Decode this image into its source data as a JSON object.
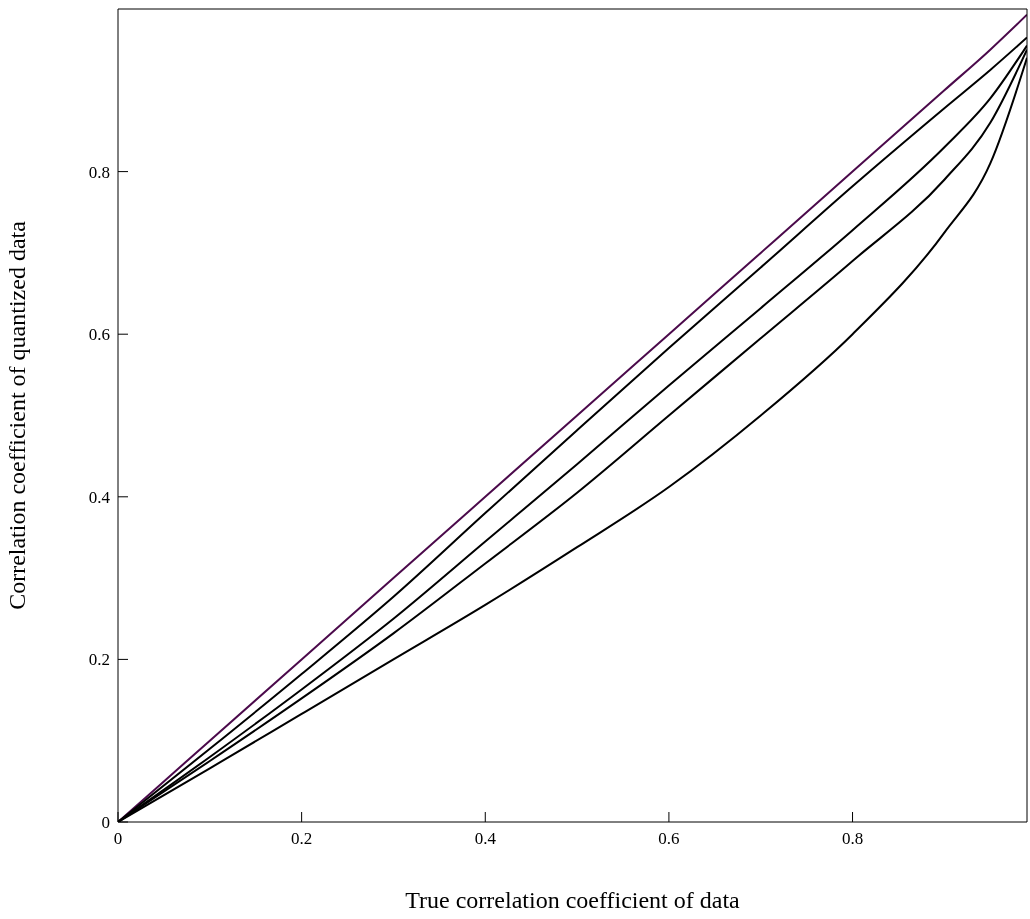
{
  "chart_data": {
    "type": "line",
    "xlabel": "True correlation coefficient of data",
    "ylabel": "Correlation coefficient of quantized data",
    "x": [
      0,
      0.1,
      0.2,
      0.3,
      0.4,
      0.5,
      0.6,
      0.7,
      0.8,
      0.9,
      0.95,
      0.99
    ],
    "series": [
      {
        "color": "#4b0a4b",
        "values": [
          0,
          0.1,
          0.2,
          0.3,
          0.4,
          0.5,
          0.6,
          0.7,
          0.8,
          0.9,
          0.95,
          0.993
        ]
      },
      {
        "color": "#000000",
        "values": [
          0,
          0.09,
          0.182,
          0.277,
          0.38,
          0.482,
          0.583,
          0.682,
          0.782,
          0.878,
          0.925,
          0.965
        ]
      },
      {
        "color": "#000000",
        "values": [
          0,
          0.08,
          0.163,
          0.25,
          0.345,
          0.44,
          0.537,
          0.632,
          0.728,
          0.83,
          0.89,
          0.955
        ]
      },
      {
        "color": "#000000",
        "values": [
          0,
          0.075,
          0.152,
          0.232,
          0.318,
          0.405,
          0.5,
          0.595,
          0.69,
          0.79,
          0.86,
          0.95
        ]
      },
      {
        "color": "#000000",
        "values": [
          0,
          0.066,
          0.133,
          0.2,
          0.267,
          0.338,
          0.412,
          0.5,
          0.6,
          0.725,
          0.81,
          0.94
        ]
      }
    ],
    "xlim": [
      0,
      0.99
    ],
    "ylim": [
      0,
      1
    ],
    "xticks": [
      0,
      0.2,
      0.4,
      0.6,
      0.8
    ],
    "yticks": [
      0,
      0.2,
      0.4,
      0.6,
      0.8
    ],
    "marker": "none",
    "line_style": "solid"
  }
}
